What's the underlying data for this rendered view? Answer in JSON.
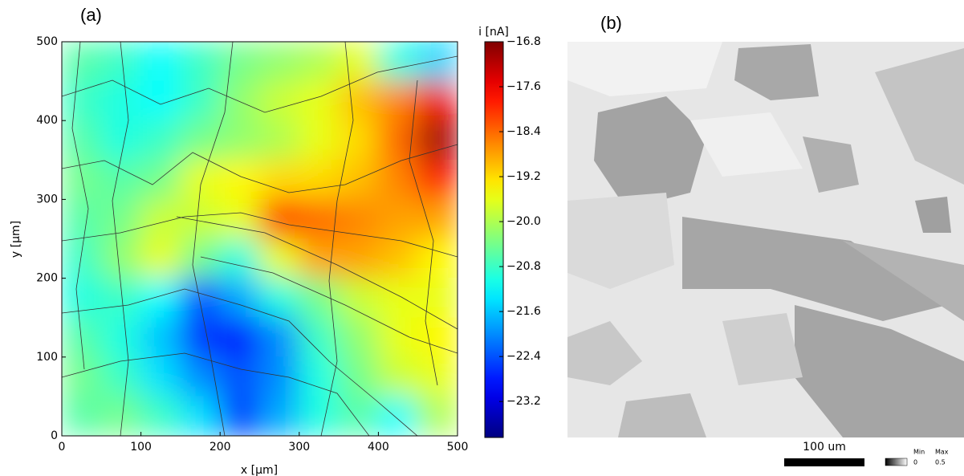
{
  "chart_data": [
    {
      "type": "heatmap",
      "panel_label": "(a)",
      "x_label": "x [µm]",
      "y_label": "y [µm]",
      "colorbar_label": "i [nA]",
      "colormap": "jet",
      "xlim": [
        0,
        500
      ],
      "ylim": [
        0,
        500
      ],
      "xticks": [
        0,
        100,
        200,
        300,
        400,
        500
      ],
      "yticks": [
        0,
        100,
        200,
        300,
        400,
        500
      ],
      "x": [
        25,
        75,
        125,
        175,
        225,
        275,
        325,
        375,
        425,
        475
      ],
      "y": [
        475,
        425,
        375,
        325,
        275,
        225,
        175,
        125,
        75,
        25
      ],
      "z": [
        [
          -20.6,
          -20.8,
          -21.2,
          -20.8,
          -20.4,
          -20.2,
          -20.0,
          -19.6,
          -21.0,
          -21.5
        ],
        [
          -20.8,
          -21.0,
          -21.2,
          -20.8,
          -20.2,
          -19.8,
          -19.6,
          -19.0,
          -18.6,
          -17.6
        ],
        [
          -20.6,
          -21.0,
          -20.8,
          -20.4,
          -20.2,
          -20.0,
          -19.6,
          -19.2,
          -18.4,
          -17.0
        ],
        [
          -20.4,
          -20.6,
          -20.4,
          -19.6,
          -19.4,
          -19.2,
          -19.2,
          -19.0,
          -18.6,
          -17.8
        ],
        [
          -20.6,
          -20.4,
          -19.8,
          -19.8,
          -19.6,
          -18.0,
          -18.4,
          -18.6,
          -18.8,
          -18.8
        ],
        [
          -20.8,
          -20.2,
          -19.6,
          -20.4,
          -21.0,
          -19.6,
          -18.8,
          -18.8,
          -19.0,
          -19.4
        ],
        [
          -21.0,
          -20.8,
          -21.2,
          -22.4,
          -21.8,
          -21.0,
          -20.4,
          -19.8,
          -19.6,
          -19.6
        ],
        [
          -20.6,
          -21.0,
          -21.6,
          -22.6,
          -22.8,
          -22.0,
          -20.8,
          -20.2,
          -19.6,
          -19.4
        ],
        [
          -20.4,
          -20.8,
          -21.4,
          -22.0,
          -22.4,
          -22.0,
          -21.0,
          -20.4,
          -19.8,
          -19.6
        ],
        [
          -20.6,
          -20.4,
          -20.8,
          -21.4,
          -22.6,
          -21.8,
          -21.0,
          -20.6,
          -21.2,
          -20.0
        ]
      ],
      "clim": [
        -23.84,
        -16.8
      ],
      "cticks": [
        {
          "value": -16.8,
          "label": "−16.8"
        },
        {
          "value": -17.6,
          "label": "−17.6"
        },
        {
          "value": -18.4,
          "label": "−18.4"
        },
        {
          "value": -19.2,
          "label": "−19.2"
        },
        {
          "value": -20.0,
          "label": "−20.0"
        },
        {
          "value": -20.8,
          "label": "−20.8"
        },
        {
          "value": -21.6,
          "label": "−21.6"
        },
        {
          "value": -22.4,
          "label": "−22.4"
        },
        {
          "value": -23.2,
          "label": "−23.2"
        }
      ]
    },
    {
      "type": "image",
      "panel_label": "(b)",
      "scale_bar": "100 um",
      "legend_min_label": "Min",
      "legend_min": 0,
      "legend_max_label": "Max",
      "legend_max": 0.5
    }
  ]
}
